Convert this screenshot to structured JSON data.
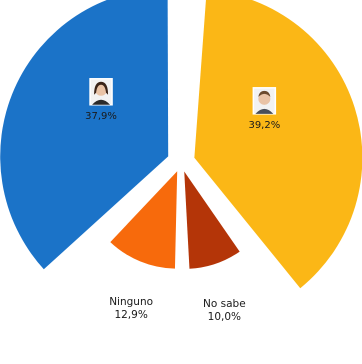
{
  "chart_data": {
    "type": "pie",
    "title": "",
    "legend": "none",
    "slices": [
      {
        "label": "",
        "value": 37.9,
        "value_label": "37,9%",
        "color": "#1b73c8",
        "icon": "woman-portrait-icon"
      },
      {
        "label": "Ninguno",
        "value": 12.9,
        "value_label": "12,9%",
        "color": "#f76a0c"
      },
      {
        "label": "No sabe",
        "value": 10.0,
        "value_label": "10,0%",
        "color": "#b43508"
      },
      {
        "label": "",
        "value": 39.2,
        "value_label": "39,2%",
        "color": "#fbb716",
        "icon": "man-portrait-icon"
      }
    ]
  }
}
